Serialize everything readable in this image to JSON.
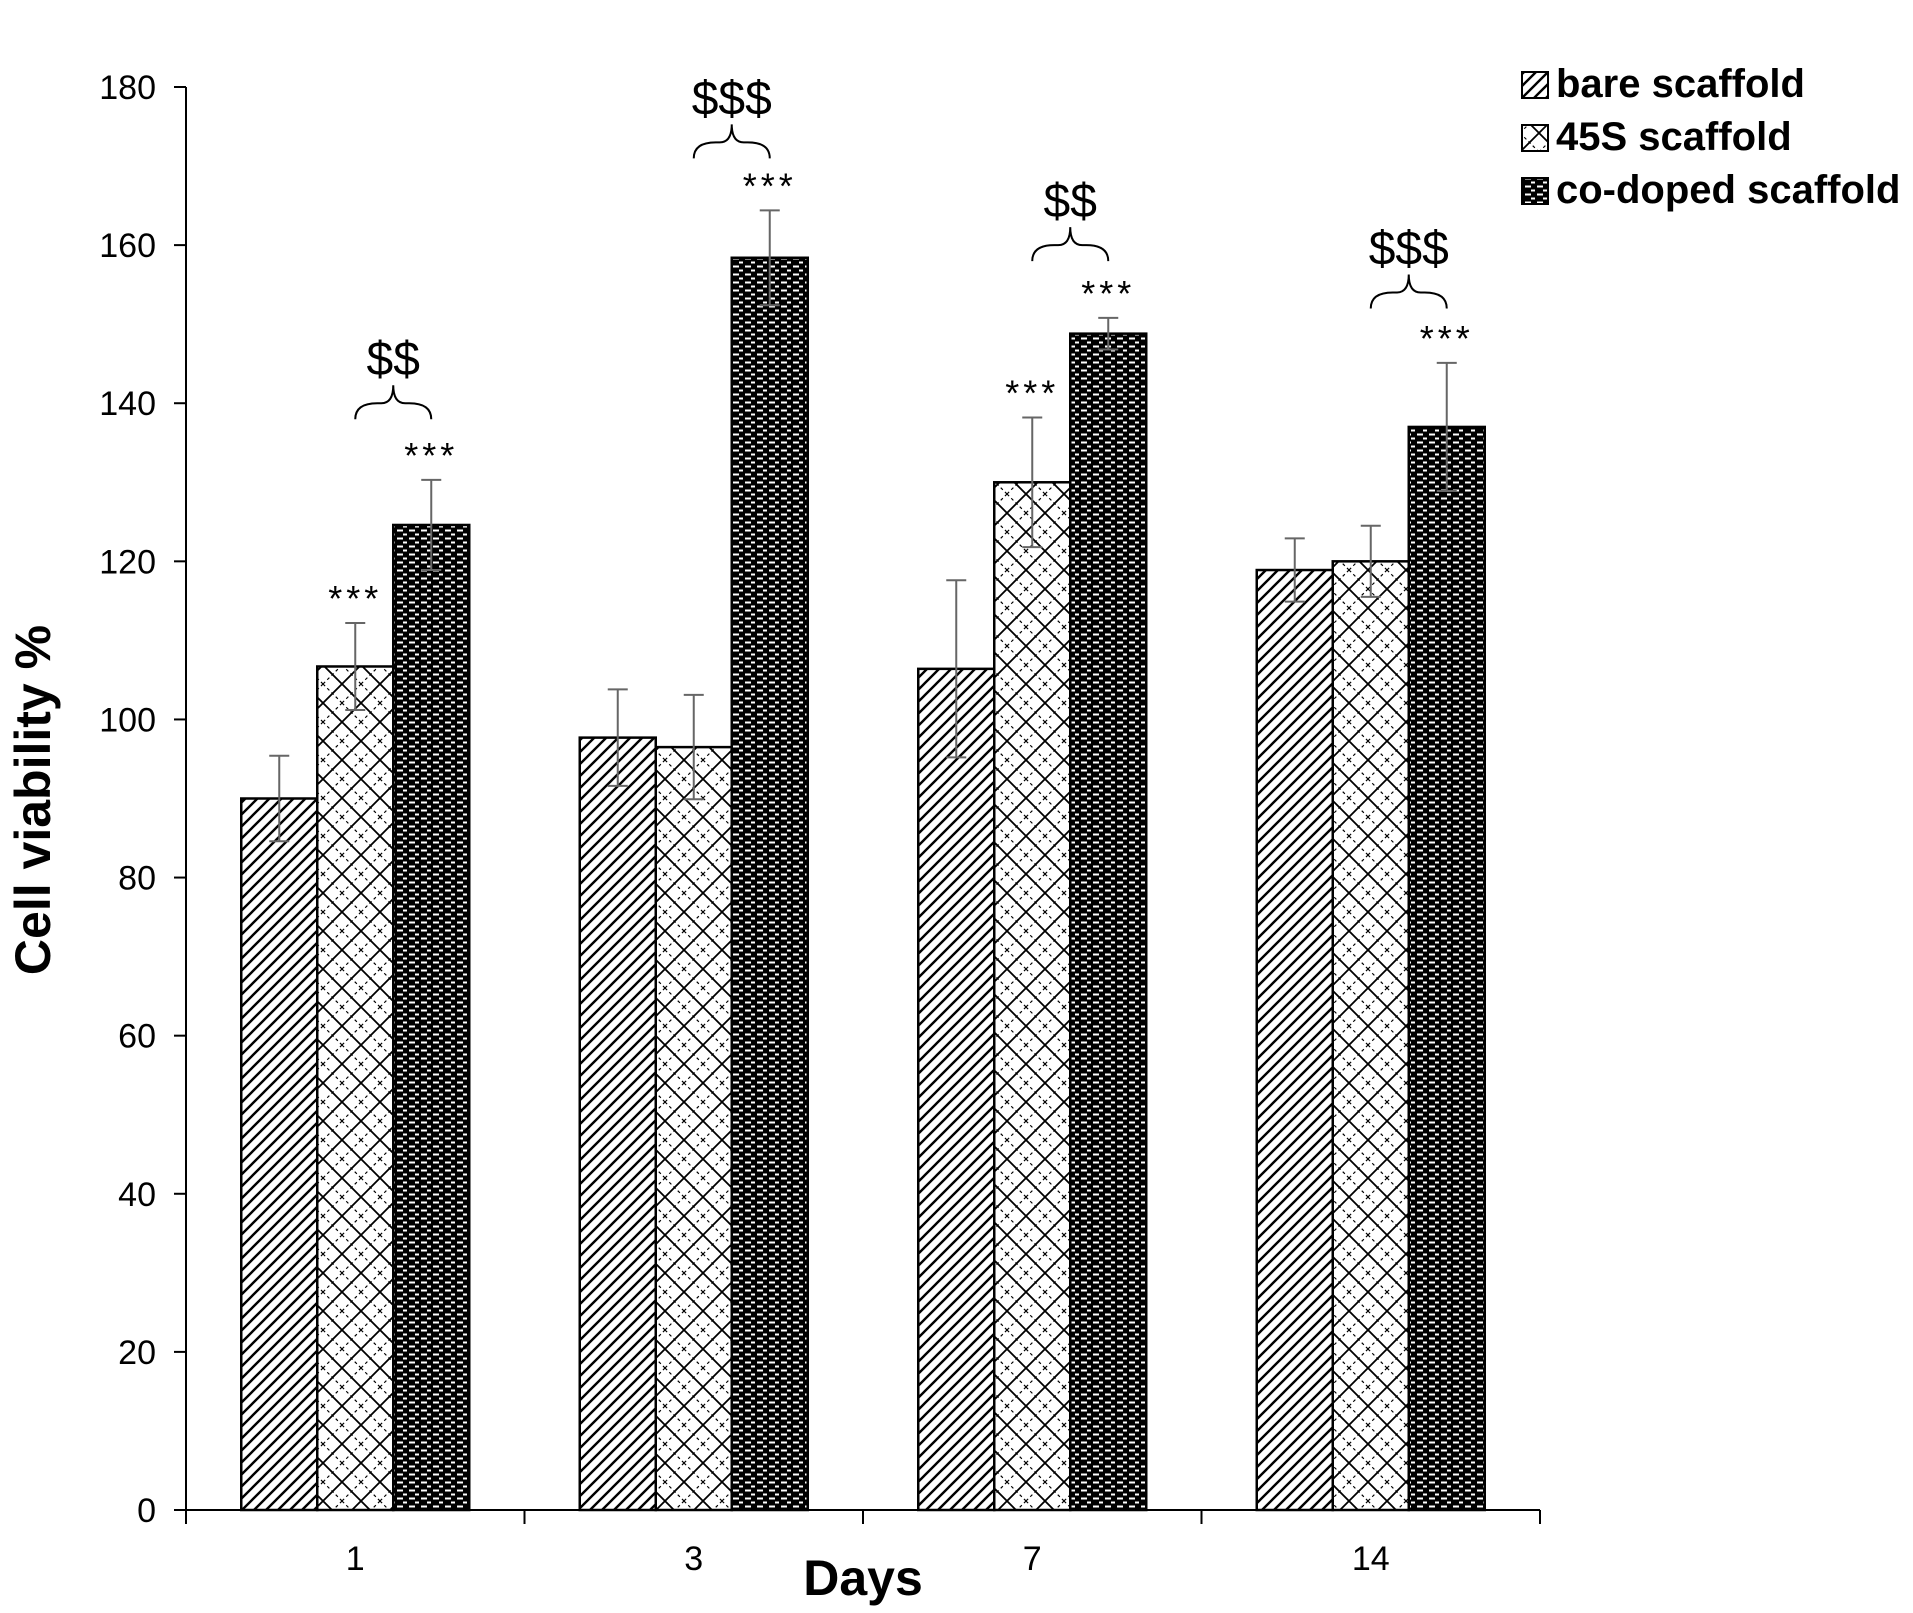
{
  "chart_data": {
    "type": "bar",
    "title": "",
    "xlabel": "Days",
    "ylabel": "Cell viability %",
    "categories": [
      "1",
      "3",
      "7",
      "14"
    ],
    "ylim": [
      0,
      180
    ],
    "yticks": [
      0,
      20,
      40,
      60,
      80,
      100,
      120,
      140,
      160,
      180
    ],
    "legend_position": "top-right",
    "series": [
      {
        "name": "bare scaffold",
        "pattern": "diagonal-stripes",
        "values": [
          90,
          97.7,
          106.4,
          118.9
        ],
        "errors": [
          5.4,
          6.1,
          11.2,
          4
        ]
      },
      {
        "name": "45S scaffold",
        "pattern": "lattice",
        "values": [
          106.7,
          96.5,
          130,
          120
        ],
        "errors": [
          5.5,
          6.6,
          8.2,
          4.5
        ]
      },
      {
        "name": "co-doped scaffold",
        "pattern": "dark-brick",
        "values": [
          124.6,
          158.4,
          148.8,
          137
        ],
        "errors": [
          5.7,
          6,
          2,
          8.1
        ]
      }
    ],
    "annotations": {
      "stars": [
        {
          "category": 0,
          "series": 1,
          "text": "***"
        },
        {
          "category": 0,
          "series": 2,
          "text": "***"
        },
        {
          "category": 1,
          "series": 2,
          "text": "***"
        },
        {
          "category": 2,
          "series": 1,
          "text": "***"
        },
        {
          "category": 2,
          "series": 2,
          "text": "***"
        },
        {
          "category": 3,
          "series": 2,
          "text": "***"
        }
      ],
      "brackets": [
        {
          "category": 0,
          "text": "$$",
          "value": 140
        },
        {
          "category": 1,
          "text": "$$$",
          "value": 173
        },
        {
          "category": 2,
          "text": "$$",
          "value": 160
        },
        {
          "category": 3,
          "text": "$$$",
          "value": 154
        }
      ]
    }
  }
}
